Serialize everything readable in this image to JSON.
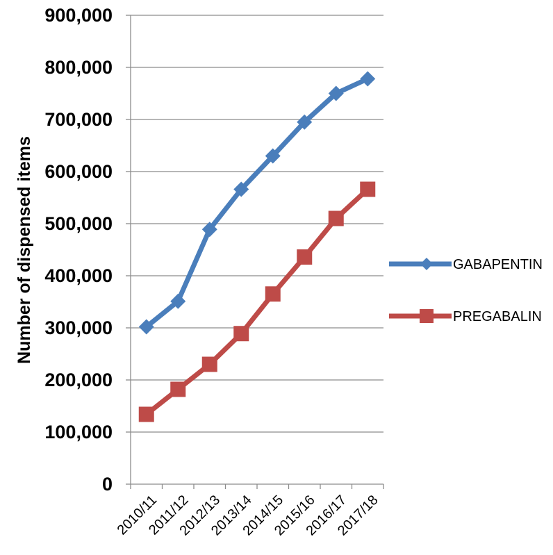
{
  "chart_data": {
    "type": "line",
    "title": "",
    "xlabel": "",
    "ylabel": "Number of dispensed items",
    "ylim": [
      0,
      900000
    ],
    "yticks": [
      0,
      100000,
      200000,
      300000,
      400000,
      500000,
      600000,
      700000,
      800000,
      900000
    ],
    "ytick_labels": [
      "0",
      "100,000",
      "200,000",
      "300,000",
      "400,000",
      "500,000",
      "600,000",
      "700,000",
      "800,000",
      "900,000"
    ],
    "categories": [
      "2010/11",
      "2011/12",
      "2012/13",
      "2013/14",
      "2014/15",
      "2015/16",
      "2016/17",
      "2017/18"
    ],
    "grid": true,
    "legend_position": "right",
    "series": [
      {
        "name": "GABAPENTIN",
        "color": "#4a7ebb",
        "marker": "diamond",
        "values": [
          302000,
          351000,
          489000,
          566000,
          630000,
          695000,
          750000,
          778000
        ]
      },
      {
        "name": "PREGABALIN",
        "color": "#be4b48",
        "marker": "square",
        "values": [
          134000,
          182000,
          230000,
          289000,
          365000,
          436000,
          510000,
          566000
        ]
      }
    ]
  }
}
